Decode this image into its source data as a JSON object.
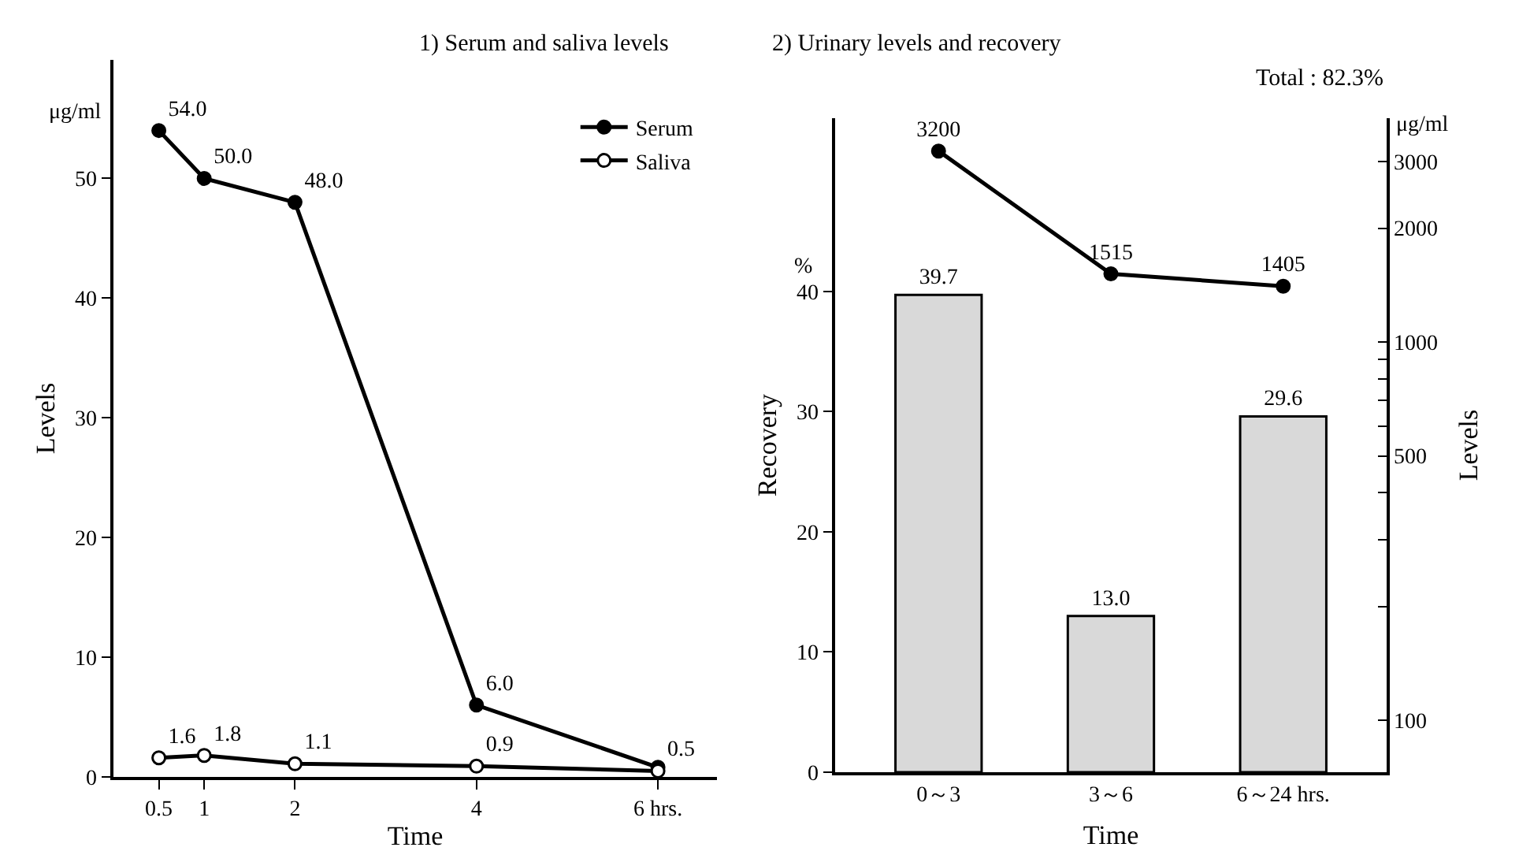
{
  "chart_data": [
    {
      "type": "line",
      "title": "1) Serum and saliva levels",
      "xlabel": "Time",
      "ylabel": "Levels",
      "annotations": [
        "μg/ml"
      ],
      "x": [
        0.5,
        1,
        2,
        4,
        6
      ],
      "xlim": [
        0,
        6.65
      ],
      "xticks": [
        0.5,
        1,
        2,
        4,
        {
          "value": 6,
          "label": "6 hrs."
        }
      ],
      "ylim": [
        0,
        59.9
      ],
      "yticks": [
        0,
        10,
        20,
        30,
        40,
        50
      ],
      "legend": "top right",
      "line_style": "solid",
      "series": [
        {
          "name": "Serum",
          "color": "#000000",
          "marker": "circle",
          "values": [
            54.0,
            50.0,
            48.0,
            6.0,
            0.8
          ],
          "value_labels": [
            "54.0",
            "50.0",
            "48.0",
            "6.0",
            null
          ]
        },
        {
          "name": "Saliva",
          "color": "#000000",
          "marker": "circle-open",
          "values": [
            1.6,
            1.8,
            1.1,
            0.9,
            0.5
          ],
          "value_labels": [
            "1.6",
            "1.8",
            "1.1",
            "0.9",
            "0.5"
          ]
        }
      ]
    },
    {
      "type": "bar",
      "title": "2) Urinary levels and recovery",
      "subtitle": "Total : 82.3%",
      "xlabel": "Time",
      "ylabel": "Recovery",
      "y2label": "Levels",
      "annotations": [
        "%",
        "μg/ml"
      ],
      "categories": [
        "0～3",
        "3～6",
        "6～24 hrs."
      ],
      "ylim": [
        0,
        54.4
      ],
      "yticks": [
        0,
        10,
        20,
        30,
        40
      ],
      "y2lim": [
        72.9,
        3908
      ],
      "log": "y2",
      "y2ticks": [
        100,
        {
          "value": 200,
          "label": null
        },
        {
          "value": 300,
          "label": null
        },
        {
          "value": 400,
          "label": null
        },
        500,
        {
          "value": 600,
          "label": null
        },
        {
          "value": 700,
          "label": null
        },
        {
          "value": 800,
          "label": null
        },
        {
          "value": 900,
          "label": null
        },
        1000,
        2000,
        3000
      ],
      "data_labels": true,
      "series": [
        {
          "type": "bar",
          "color": "#d9d9d9",
          "values": [
            39.7,
            13.0,
            29.6
          ],
          "value_labels": [
            "39.7",
            "13.0",
            "29.6"
          ]
        },
        {
          "type": "line",
          "axis": "y2",
          "color": "#000000",
          "marker": "circle",
          "values": [
            3200,
            1515,
            1405
          ]
        }
      ]
    }
  ]
}
